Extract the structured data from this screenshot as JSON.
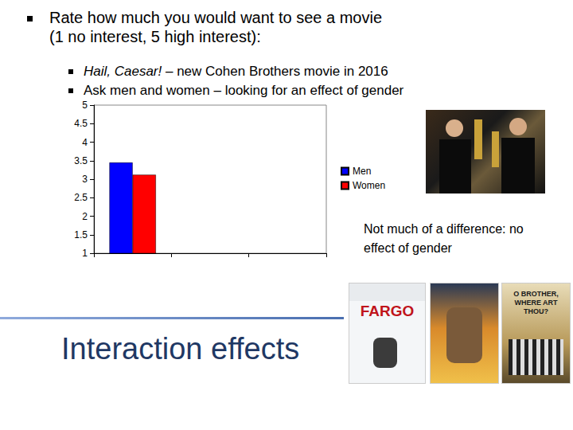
{
  "chart_data": {
    "type": "bar",
    "categories": [
      null,
      null,
      null
    ],
    "series": [
      {
        "name": "Men",
        "color": "#0000ff",
        "values": [
          3.45,
          null,
          null
        ]
      },
      {
        "name": "Women",
        "color": "#ff0000",
        "values": [
          3.12,
          null,
          null
        ]
      }
    ],
    "ylim": [
      1,
      5
    ],
    "yticks": [
      1,
      1.5,
      2,
      2.5,
      3,
      3.5,
      4,
      4.5,
      5
    ],
    "grid": false,
    "legend": "right",
    "tick_labels": "y"
  },
  "slide": {
    "bullet": "Rate how much you would want to see a movie (1 no interest, 5 high interest):",
    "sub_bullets": [
      {
        "italic": "Hail, Caesar!",
        "text": " – new Cohen Brothers movie in 2016"
      },
      {
        "text": "Ask men and women – looking for an effect of gender"
      }
    ],
    "annotation": "Not much of a difference: no effect of gender",
    "heading": "Interaction effects",
    "posters": [
      "FARGO",
      "O BROTHER, WHERE ART THOU?"
    ]
  }
}
